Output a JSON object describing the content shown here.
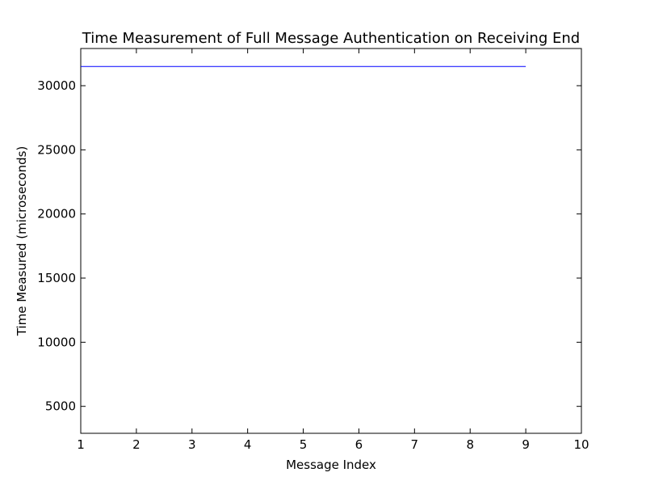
{
  "chart_data": {
    "type": "line",
    "title": "Time Measurement of Full Message Authentication on Receiving End",
    "xlabel": "Message Index",
    "ylabel": "Time Measured (microseconds)",
    "xlim": [
      1,
      10
    ],
    "ylim": [
      2900,
      32900
    ],
    "xticks": [
      1,
      2,
      3,
      4,
      5,
      6,
      7,
      8,
      9,
      10
    ],
    "yticks": [
      5000,
      10000,
      15000,
      20000,
      25000,
      30000
    ],
    "grid": false,
    "series": [
      {
        "color": "#0000ff",
        "x": [
          1,
          2,
          3,
          4,
          5,
          6,
          7,
          8,
          9
        ],
        "y": [
          31500,
          31500,
          31500,
          31500,
          31500,
          31500,
          31500,
          31500,
          31500
        ]
      }
    ]
  }
}
